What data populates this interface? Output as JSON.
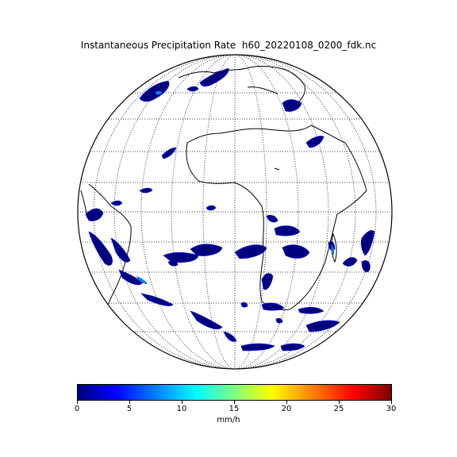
{
  "figure": {
    "title": "Instantaneous Precipitation Rate  h60_20220108_0200_fdk.nc"
  },
  "colorbar": {
    "ticks": [
      "0",
      "5",
      "10",
      "15",
      "20",
      "25",
      "30"
    ],
    "unit_label": "mm/h",
    "range": [
      0,
      30
    ],
    "colormap": "jet",
    "colors": [
      "#00007f",
      "#0000ff",
      "#0080ff",
      "#00ffff",
      "#80ff80",
      "#ffff00",
      "#ff8000",
      "#ff0000",
      "#7f0000"
    ]
  },
  "map": {
    "projection": "orthographic full disk",
    "graticule": "dotted",
    "region": "Atlantic, Africa, Europe, South America"
  }
}
